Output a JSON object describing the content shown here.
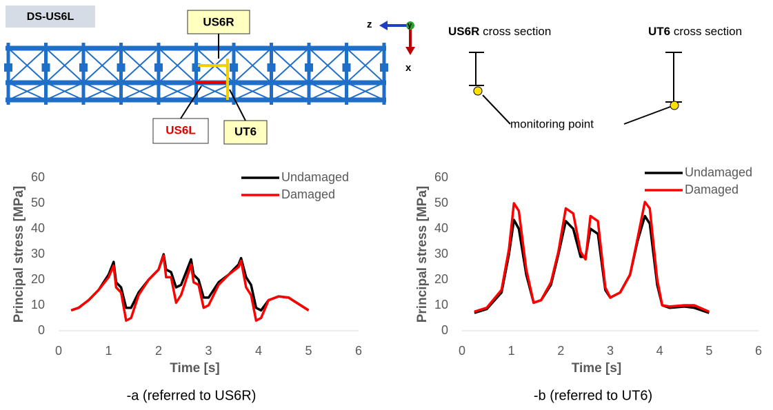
{
  "diagram": {
    "tag": "DS-US6L",
    "labels": {
      "us6r": "US6R",
      "us6l": "US6L",
      "ut6": "UT6"
    },
    "axes": {
      "z": "z",
      "y": "y",
      "x": "x"
    },
    "sections": [
      {
        "name": "US6R",
        "text": " cross section"
      },
      {
        "name": "UT6",
        "text": " cross section"
      }
    ],
    "monitoring": "monitoring point"
  },
  "chart_data": [
    {
      "type": "line",
      "caption": "-a (referred to US6R)",
      "x_label": "Time [s]",
      "y_label": "Principal stress [MPa]",
      "xlim": [
        0,
        6
      ],
      "xticks": [
        0,
        1,
        2,
        3,
        4,
        5,
        6
      ],
      "ylim": [
        0,
        60
      ],
      "yticks": [
        0,
        10,
        20,
        30,
        40,
        50,
        60
      ],
      "legend": "top-right",
      "x": [
        0.25,
        0.4,
        0.6,
        0.8,
        1.0,
        1.1,
        1.15,
        1.25,
        1.35,
        1.45,
        1.6,
        1.8,
        2.0,
        2.1,
        2.15,
        2.25,
        2.35,
        2.45,
        2.55,
        2.65,
        2.7,
        2.8,
        2.9,
        3.0,
        3.2,
        3.4,
        3.6,
        3.65,
        3.75,
        3.85,
        3.95,
        4.05,
        4.2,
        4.4,
        4.6,
        4.8,
        5.0
      ],
      "series": [
        {
          "name": "Undamaged",
          "color": "#000000",
          "values": [
            8,
            9,
            12,
            16,
            22,
            27,
            19,
            17,
            9,
            9,
            15,
            20,
            24,
            30,
            24,
            23,
            17,
            18,
            23,
            28,
            22,
            20,
            13,
            13,
            19,
            22,
            26,
            28.5,
            21,
            18,
            9,
            8,
            12,
            13.5,
            13,
            10.5,
            8
          ]
        },
        {
          "name": "Damaged",
          "color": "#ff0000",
          "values": [
            8,
            9,
            12,
            16,
            21,
            25.5,
            17,
            15,
            4,
            5,
            14,
            20,
            24,
            29.5,
            21,
            21,
            11,
            14,
            20,
            26,
            19,
            18,
            9,
            10,
            18,
            22,
            25,
            27.5,
            17,
            14,
            4,
            5,
            12,
            13.5,
            13,
            10.5,
            8
          ]
        }
      ]
    },
    {
      "type": "line",
      "caption": "-b (referred to UT6)",
      "x_label": "Time [s]",
      "y_label": "Principal stress [MPa]",
      "xlim": [
        0,
        6
      ],
      "xticks": [
        0,
        1,
        2,
        3,
        4,
        5,
        6
      ],
      "ylim": [
        0,
        60
      ],
      "yticks": [
        0,
        10,
        20,
        30,
        40,
        50,
        60
      ],
      "legend": "top-right",
      "x": [
        0.25,
        0.5,
        0.8,
        0.95,
        1.05,
        1.15,
        1.3,
        1.45,
        1.6,
        1.8,
        1.95,
        2.1,
        2.25,
        2.4,
        2.5,
        2.6,
        2.75,
        2.9,
        3.0,
        3.2,
        3.4,
        3.55,
        3.7,
        3.8,
        3.95,
        4.05,
        4.2,
        4.5,
        4.7,
        5.0
      ],
      "series": [
        {
          "name": "Undamaged",
          "color": "#000000",
          "values": [
            7,
            8.5,
            15,
            30,
            43.5,
            40,
            22,
            11,
            12,
            18,
            30,
            43,
            40,
            29,
            29,
            40,
            38,
            16,
            13,
            15,
            22,
            35,
            45,
            42,
            18,
            10,
            9,
            9.5,
            9,
            7
          ]
        },
        {
          "name": "Damaged",
          "color": "#ff0000",
          "values": [
            7.5,
            9,
            16,
            32,
            50,
            47,
            24,
            11,
            12,
            19,
            31,
            48,
            46,
            31,
            28,
            45,
            43,
            17,
            13,
            15,
            22,
            36,
            50.5,
            48,
            20,
            10,
            9.5,
            10,
            10,
            7.5
          ]
        }
      ]
    }
  ]
}
